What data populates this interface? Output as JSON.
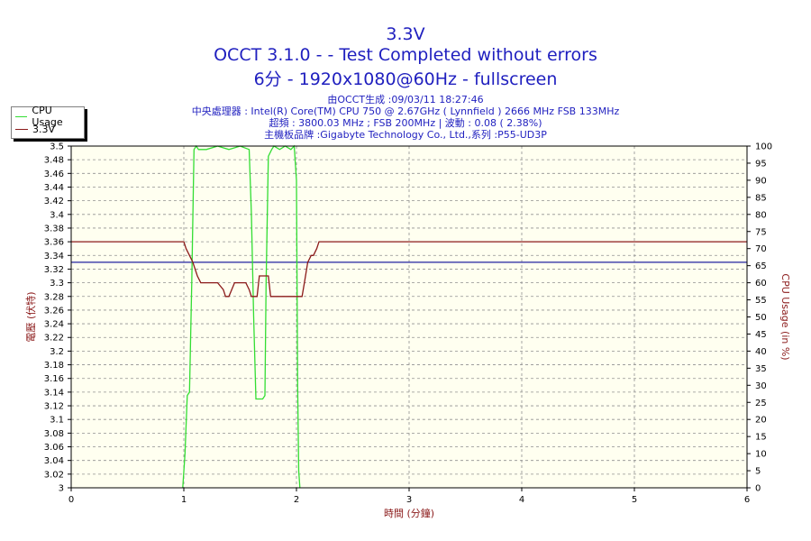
{
  "header": {
    "title1": "3.3V",
    "title2": "OCCT 3.1.0 -  - Test Completed without errors",
    "title3": "6分 - 1920x1080@60Hz - fullscreen",
    "info1": "由OCCT生成 :09/03/11 18:27:46",
    "info2": "中央處理器 : Intel(R) Core(TM) CPU 750 @ 2.67GHz ( Lynnfield ) 2666 MHz FSB 133MHz",
    "info3": "超頻 : 3800.03 MHz ; FSB 200MHz | 波動 : 0.08 ( 2.38%)",
    "info4": "主機板品牌 :Gigabyte Technology Co., Ltd.,系列 :P55-UD3P"
  },
  "colors": {
    "plot_background": "#fffff0",
    "grid": "#909090",
    "cpu_series": "#33dd33",
    "voltage_series": "#8b1a1a",
    "reference_line": "#2020a0",
    "left_axis_label": "#8b1a1a",
    "right_axis_label": "#8b1a1a",
    "x_axis_label": "#8b1a1a"
  },
  "legend": {
    "items": [
      {
        "label": "CPU Usage",
        "color": "#33dd33"
      },
      {
        "label": "3.3V",
        "color": "#8b1a1a"
      }
    ]
  },
  "chart_data": {
    "type": "line",
    "title": "3.3V",
    "xlabel": "時間 (分鐘)",
    "ylabel": "電壓 (伏特)",
    "y2label": "CPU Usage (in %)",
    "xlim": [
      0,
      6
    ],
    "ylim": [
      3,
      3.5
    ],
    "y2lim": [
      0,
      100
    ],
    "x_ticks": [
      "0",
      "1",
      "2",
      "3",
      "4",
      "5",
      "6"
    ],
    "y_ticks": [
      "3",
      "3.02",
      "3.04",
      "3.06",
      "3.08",
      "3.1",
      "3.12",
      "3.14",
      "3.16",
      "3.18",
      "3.2",
      "3.22",
      "3.24",
      "3.26",
      "3.28",
      "3.3",
      "3.32",
      "3.34",
      "3.36",
      "3.38",
      "3.4",
      "3.42",
      "3.44",
      "3.46",
      "3.48",
      "3.5"
    ],
    "y2_ticks": [
      "0",
      "5",
      "10",
      "15",
      "20",
      "25",
      "30",
      "35",
      "40",
      "45",
      "50",
      "55",
      "60",
      "65",
      "70",
      "75",
      "80",
      "85",
      "90",
      "95",
      "100"
    ],
    "grid": true,
    "legend_position": "top-left",
    "reference_line": {
      "y": 3.33
    },
    "series": [
      {
        "name": "CPU Usage",
        "axis": "right",
        "x": [
          0.99,
          1.01,
          1.03,
          1.05,
          1.07,
          1.09,
          1.11,
          1.13,
          1.2,
          1.3,
          1.4,
          1.5,
          1.58,
          1.6,
          1.62,
          1.64,
          1.65,
          1.7,
          1.72,
          1.73,
          1.75,
          1.78,
          1.8,
          1.85,
          1.9,
          1.95,
          1.98,
          2.0,
          2.01,
          2.02,
          2.03
        ],
        "values": [
          0,
          10,
          27,
          28,
          60,
          99,
          100,
          99,
          99,
          100,
          99,
          100,
          99,
          80,
          50,
          26,
          26,
          26,
          27,
          60,
          97,
          99,
          100,
          99,
          100,
          99,
          100,
          90,
          30,
          5,
          0
        ]
      },
      {
        "name": "3.3V",
        "axis": "left",
        "x": [
          0,
          1.0,
          1.02,
          1.05,
          1.08,
          1.1,
          1.12,
          1.15,
          1.2,
          1.25,
          1.3,
          1.35,
          1.37,
          1.4,
          1.45,
          1.5,
          1.55,
          1.58,
          1.6,
          1.65,
          1.67,
          1.75,
          1.77,
          1.8,
          1.9,
          2.0,
          2.05,
          2.07,
          2.1,
          2.13,
          2.15,
          2.18,
          2.2,
          6.0
        ],
        "values": [
          3.36,
          3.36,
          3.35,
          3.34,
          3.33,
          3.32,
          3.31,
          3.3,
          3.3,
          3.3,
          3.3,
          3.29,
          3.28,
          3.28,
          3.3,
          3.3,
          3.3,
          3.29,
          3.28,
          3.28,
          3.31,
          3.31,
          3.28,
          3.28,
          3.28,
          3.28,
          3.28,
          3.3,
          3.33,
          3.34,
          3.34,
          3.35,
          3.36,
          3.36
        ]
      }
    ]
  }
}
